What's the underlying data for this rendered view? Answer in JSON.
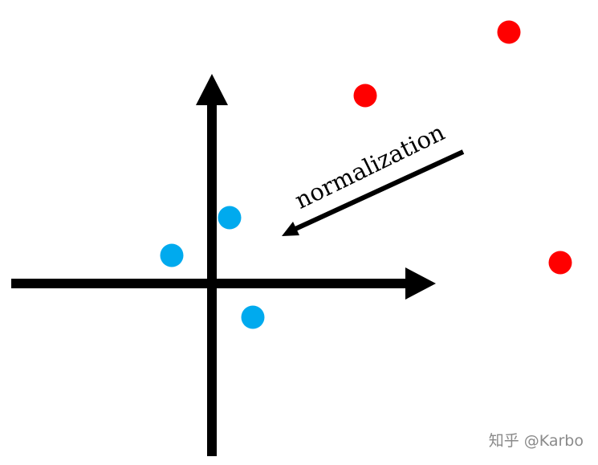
{
  "diagram": {
    "arrow_label": "normalization"
  },
  "points": {
    "before": {
      "color": "#ff0000",
      "count": 3
    },
    "after": {
      "color": "#00aaee",
      "count": 3
    }
  },
  "axes": {
    "color": "#000000",
    "x_arrow": true,
    "y_arrow": true
  },
  "watermark": {
    "text": "知乎 @Karbo"
  }
}
